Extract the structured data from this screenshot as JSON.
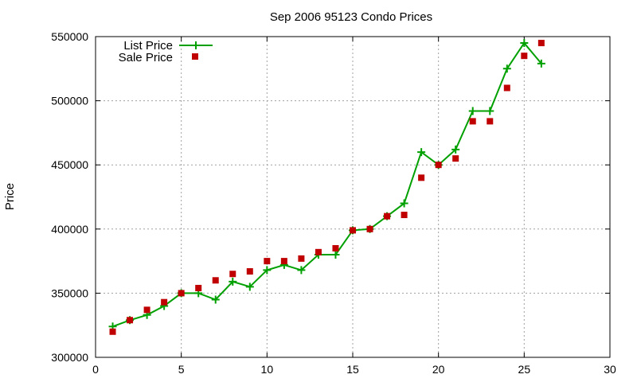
{
  "chart_data": {
    "type": "line",
    "title": "Sep 2006 95123 Condo Prices",
    "xlabel": "",
    "ylabel": "Price",
    "xlim": [
      0,
      30
    ],
    "ylim": [
      300000,
      550000
    ],
    "x_ticks": [
      "0",
      "5",
      "10",
      "15",
      "20",
      "25",
      "30"
    ],
    "y_ticks": [
      "300000",
      "350000",
      "400000",
      "450000",
      "500000",
      "550000"
    ],
    "grid": true,
    "legend_position": "top-left",
    "series": [
      {
        "name": "List Price",
        "style": "lines+points",
        "marker": "plus",
        "color": "#00a000",
        "x": [
          1,
          2,
          3,
          4,
          5,
          6,
          7,
          8,
          9,
          10,
          11,
          12,
          13,
          14,
          15,
          16,
          17,
          18,
          19,
          20,
          21,
          22,
          23,
          24,
          25,
          26
        ],
        "y": [
          324000,
          329000,
          333000,
          340000,
          350000,
          350000,
          345000,
          359000,
          355000,
          368000,
          372000,
          368000,
          380000,
          380000,
          399000,
          400000,
          410000,
          420000,
          460000,
          450000,
          462000,
          492000,
          492000,
          525000,
          545000,
          529000
        ]
      },
      {
        "name": "Sale Price",
        "style": "points",
        "marker": "square",
        "color": "#c00000",
        "x": [
          1,
          2,
          3,
          4,
          5,
          6,
          7,
          8,
          9,
          10,
          11,
          12,
          13,
          14,
          15,
          16,
          17,
          18,
          19,
          20,
          21,
          22,
          23,
          24,
          25,
          26
        ],
        "y": [
          320000,
          329000,
          337000,
          343000,
          350000,
          354000,
          360000,
          365000,
          367000,
          375000,
          375000,
          377000,
          382000,
          385000,
          399000,
          400000,
          410000,
          411000,
          440000,
          450000,
          455000,
          484000,
          484000,
          510000,
          535000,
          545000
        ]
      }
    ]
  }
}
